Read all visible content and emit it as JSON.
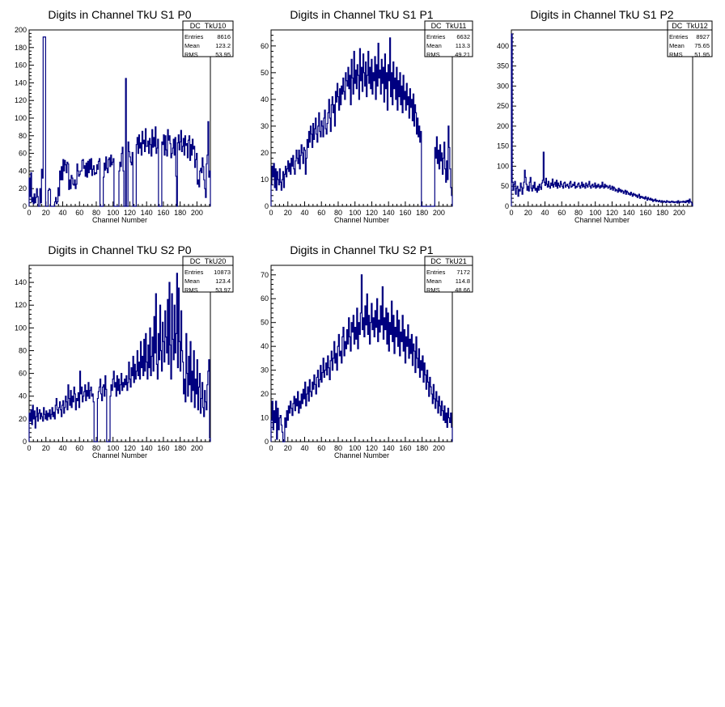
{
  "chart_data": [
    {
      "type": "histogram",
      "title": "Digits in Channel TkU S1 P0",
      "xlabel": "Channel Number",
      "xlim": [
        0,
        216
      ],
      "ylim": [
        0,
        200
      ],
      "xticks": [
        0,
        20,
        40,
        60,
        80,
        100,
        120,
        140,
        160,
        180,
        200
      ],
      "yticks": [
        0,
        20,
        40,
        60,
        80,
        100,
        120,
        140,
        160,
        180,
        200
      ],
      "stats": {
        "name": "DC_TkU10",
        "rows": [
          [
            "Entries",
            "8616"
          ],
          [
            "Mean",
            "123.2"
          ],
          [
            "RMS",
            "53.95"
          ]
        ]
      },
      "values": [
        32,
        11,
        38,
        5,
        10,
        3,
        14,
        4,
        10,
        20,
        11,
        0,
        0,
        20,
        4,
        42,
        32,
        192,
        192,
        192,
        0,
        0,
        0,
        18,
        20,
        19,
        0,
        0,
        0,
        0,
        0,
        5,
        10,
        3,
        5,
        21,
        12,
        40,
        30,
        45,
        30,
        53,
        40,
        52,
        47,
        38,
        50,
        48,
        19,
        30,
        20,
        35,
        32,
        25,
        24,
        30,
        20,
        25,
        48,
        40,
        34,
        36,
        40,
        40,
        52,
        53,
        43,
        46,
        34,
        49,
        33,
        51,
        38,
        53,
        42,
        54,
        35,
        42,
        46,
        36,
        38,
        37,
        47,
        42,
        51,
        54,
        0,
        0,
        0,
        0,
        33,
        49,
        41,
        56,
        43,
        38,
        53,
        55,
        45,
        58,
        47,
        50,
        54,
        0,
        0,
        0,
        0,
        0,
        0,
        40,
        50,
        45,
        60,
        67,
        40,
        0,
        0,
        145,
        0,
        0,
        73,
        62,
        56,
        50,
        47,
        61,
        0,
        0,
        0,
        0,
        70,
        78,
        60,
        81,
        66,
        72,
        58,
        85,
        71,
        75,
        62,
        88,
        68,
        68,
        74,
        60,
        77,
        70,
        57,
        87,
        67,
        78,
        68,
        90,
        60,
        66,
        76,
        0,
        0,
        0,
        0,
        73,
        70,
        81,
        58,
        80,
        64,
        57,
        87,
        75,
        80,
        71,
        55,
        60,
        66,
        76,
        58,
        78,
        34,
        0,
        72,
        81,
        64,
        73,
        86,
        62,
        68,
        77,
        58,
        80,
        69,
        71,
        55,
        75,
        80,
        52,
        70,
        58,
        76,
        65,
        68,
        44,
        53,
        60,
        25,
        30,
        22,
        40,
        43,
        38,
        55,
        45,
        30,
        20,
        10,
        48,
        58,
        96,
        33,
        40
      ]
    },
    {
      "type": "histogram",
      "title": "Digits in Channel TkU S1 P1",
      "xlabel": "Channel Number",
      "xlim": [
        0,
        216
      ],
      "ylim": [
        0,
        66
      ],
      "xticks": [
        0,
        20,
        40,
        60,
        80,
        100,
        120,
        140,
        160,
        180,
        200
      ],
      "yticks": [
        0,
        10,
        20,
        30,
        40,
        50,
        60
      ],
      "stats": {
        "name": "DC_TkU11",
        "rows": [
          [
            "Entries",
            "6632"
          ],
          [
            "Mean",
            "113.3"
          ],
          [
            "RMS",
            "49.21"
          ]
        ]
      },
      "values": [
        8,
        15,
        11,
        16,
        7,
        14,
        6,
        13,
        10,
        8,
        14,
        9,
        6,
        10,
        13,
        7,
        12,
        15,
        11,
        14,
        17,
        13,
        16,
        12,
        18,
        15,
        19,
        14,
        12,
        17,
        21,
        18,
        16,
        21,
        14,
        19,
        23,
        20,
        16,
        22,
        21,
        12,
        18,
        25,
        22,
        28,
        24,
        30,
        27,
        22,
        31,
        25,
        29,
        33,
        27,
        24,
        30,
        35,
        28,
        26,
        32,
        30,
        26,
        33,
        36,
        29,
        27,
        31,
        35,
        40,
        33,
        28,
        38,
        41,
        35,
        38,
        30,
        43,
        39,
        46,
        41,
        36,
        44,
        38,
        45,
        42,
        48,
        43,
        40,
        50,
        47,
        45,
        52,
        44,
        49,
        38,
        55,
        48,
        42,
        58,
        46,
        51,
        44,
        53,
        49,
        40,
        59,
        47,
        52,
        43,
        57,
        50,
        45,
        54,
        41,
        49,
        58,
        46,
        52,
        44,
        55,
        42,
        50,
        47,
        56,
        40,
        53,
        45,
        61,
        48,
        51,
        42,
        55,
        46,
        52,
        39,
        57,
        44,
        50,
        36,
        53,
        47,
        63,
        41,
        50,
        38,
        54,
        44,
        48,
        40,
        52,
        36,
        47,
        41,
        50,
        38,
        45,
        35,
        49,
        40,
        43,
        36,
        46,
        38,
        41,
        33,
        44,
        37,
        40,
        32,
        42,
        30,
        38,
        35,
        27,
        33,
        26,
        30,
        24,
        28,
        0,
        0,
        0,
        0,
        0,
        0,
        0,
        0,
        0,
        0,
        0,
        0,
        0,
        0,
        0,
        0,
        22,
        18,
        26,
        16,
        21,
        14,
        23,
        17,
        20,
        12,
        18,
        24,
        14,
        9,
        17,
        10,
        30,
        22,
        14,
        7,
        4
      ]
    },
    {
      "type": "histogram",
      "title": "Digits in Channel TkU S1 P2",
      "xlabel": "Channel Number",
      "xlim": [
        0,
        216
      ],
      "ylim": [
        0,
        440
      ],
      "xticks": [
        0,
        20,
        40,
        60,
        80,
        100,
        120,
        140,
        160,
        180,
        200
      ],
      "yticks": [
        0,
        50,
        100,
        150,
        200,
        250,
        300,
        350,
        400
      ],
      "stats": {
        "name": "DC_TkU12",
        "rows": [
          [
            "Entries",
            "8927"
          ],
          [
            "Mean",
            "75.65"
          ],
          [
            "RMS",
            "51.95"
          ]
        ]
      },
      "values": [
        430,
        60,
        40,
        55,
        62,
        30,
        45,
        50,
        25,
        42,
        38,
        58,
        48,
        30,
        45,
        60,
        90,
        72,
        55,
        40,
        50,
        38,
        60,
        72,
        45,
        38,
        52,
        45,
        60,
        40,
        45,
        35,
        50,
        40,
        55,
        48,
        42,
        58,
        65,
        135,
        60,
        52,
        70,
        55,
        48,
        62,
        50,
        45,
        58,
        52,
        68,
        48,
        55,
        60,
        50,
        65,
        45,
        58,
        52,
        48,
        62,
        55,
        50,
        45,
        58,
        60,
        48,
        52,
        55,
        50,
        45,
        58,
        62,
        48,
        50,
        55,
        52,
        60,
        45,
        50,
        48,
        55,
        58,
        50,
        45,
        52,
        60,
        48,
        55,
        50,
        45,
        58,
        52,
        48,
        55,
        62,
        50,
        45,
        52,
        55,
        48,
        50,
        58,
        45,
        52,
        48,
        55,
        50,
        45,
        52,
        48,
        60,
        50,
        45,
        55,
        48,
        52,
        50,
        45,
        48,
        52,
        42,
        45,
        50,
        40,
        48,
        45,
        38,
        42,
        40,
        35,
        45,
        38,
        42,
        35,
        40,
        38,
        32,
        36,
        40,
        30,
        38,
        35,
        30,
        32,
        28,
        35,
        30,
        25,
        32,
        28,
        30,
        25,
        28,
        22,
        26,
        30,
        20,
        25,
        22,
        24,
        20,
        22,
        18,
        24,
        20,
        15,
        22,
        18,
        16,
        20,
        15,
        18,
        12,
        16,
        14,
        18,
        12,
        15,
        13,
        11,
        15,
        12,
        10,
        14,
        12,
        10,
        13,
        11,
        9,
        14,
        12,
        10,
        12,
        9,
        11,
        13,
        10,
        12,
        9,
        11,
        10,
        12,
        8,
        14,
        10,
        9,
        12,
        11,
        10,
        13,
        10,
        12,
        9,
        14,
        11,
        15,
        8,
        18,
        12,
        10,
        6
      ]
    },
    {
      "type": "histogram",
      "title": "Digits in Channel TkU S2 P0",
      "xlabel": "Channel Number",
      "xlim": [
        0,
        216
      ],
      "ylim": [
        0,
        155
      ],
      "xticks": [
        0,
        20,
        40,
        60,
        80,
        100,
        120,
        140,
        160,
        180,
        200
      ],
      "yticks": [
        0,
        20,
        40,
        60,
        80,
        100,
        120,
        140
      ],
      "stats": {
        "name": "DC_TkU20",
        "rows": [
          [
            "Entries",
            "10873"
          ],
          [
            "Mean",
            "123.4"
          ],
          [
            "RMS",
            "53.97"
          ]
        ]
      },
      "values": [
        25,
        18,
        28,
        15,
        32,
        20,
        27,
        12,
        22,
        30,
        18,
        25,
        28,
        20,
        25,
        22,
        18,
        30,
        24,
        20,
        27,
        19,
        25,
        22,
        28,
        20,
        24,
        30,
        22,
        26,
        20,
        32,
        38,
        28,
        25,
        30,
        35,
        28,
        22,
        32,
        36,
        25,
        30,
        40,
        35,
        28,
        50,
        38,
        32,
        45,
        30,
        40,
        35,
        48,
        42,
        28,
        38,
        36,
        43,
        30,
        62,
        42,
        48,
        35,
        40,
        44,
        50,
        36,
        45,
        40,
        52,
        38,
        45,
        48,
        40,
        42,
        35,
        0,
        0,
        0,
        0,
        38,
        44,
        48,
        55,
        42,
        36,
        48,
        50,
        40,
        58,
        46,
        0,
        0,
        0,
        0,
        40,
        50,
        45,
        55,
        62,
        48,
        52,
        40,
        58,
        45,
        55,
        42,
        50,
        60,
        45,
        52,
        48,
        55,
        50,
        58,
        45,
        52,
        70,
        55,
        48,
        65,
        58,
        75,
        52,
        68,
        55,
        62,
        80,
        58,
        70,
        55,
        88,
        65,
        75,
        58,
        90,
        62,
        95,
        70,
        55,
        85,
        65,
        100,
        58,
        75,
        92,
        62,
        110,
        78,
        130,
        68,
        55,
        95,
        72,
        120,
        80,
        62,
        105,
        88,
        70,
        115,
        92,
        78,
        125,
        68,
        140,
        85,
        55,
        130,
        90,
        72,
        120,
        78,
        95,
        148,
        65,
        135,
        88,
        62,
        115,
        80,
        70,
        42,
        55,
        35,
        95,
        60,
        40,
        75,
        50,
        88,
        35,
        62,
        45,
        80,
        30,
        55,
        42,
        72,
        28,
        48,
        60,
        25,
        38,
        52,
        30,
        22,
        45,
        35,
        28,
        50,
        62,
        72,
        3
      ]
    },
    {
      "type": "histogram",
      "title": "Digits in Channel TkU S2 P1",
      "xlabel": "Channel Number",
      "xlim": [
        0,
        216
      ],
      "ylim": [
        0,
        74
      ],
      "xticks": [
        0,
        20,
        40,
        60,
        80,
        100,
        120,
        140,
        160,
        180,
        200
      ],
      "yticks": [
        0,
        10,
        20,
        30,
        40,
        50,
        60,
        70
      ],
      "stats": {
        "name": "DC_TkU21",
        "rows": [
          [
            "Entries",
            "7172"
          ],
          [
            "Mean",
            "114.8"
          ],
          [
            "RMS",
            "48.66"
          ]
        ]
      },
      "values": [
        9,
        17,
        5,
        13,
        8,
        17,
        1,
        14,
        5,
        10,
        11,
        7,
        4,
        0,
        0,
        10,
        6,
        13,
        9,
        15,
        12,
        17,
        14,
        11,
        16,
        19,
        13,
        18,
        15,
        21,
        12,
        17,
        14,
        20,
        16,
        22,
        18,
        25,
        15,
        20,
        23,
        17,
        26,
        21,
        19,
        25,
        22,
        28,
        24,
        20,
        27,
        30,
        23,
        26,
        32,
        25,
        29,
        35,
        27,
        30,
        33,
        28,
        36,
        31,
        26,
        34,
        38,
        30,
        35,
        42,
        33,
        37,
        30,
        40,
        45,
        36,
        38,
        33,
        44,
        48,
        36,
        42,
        39,
        47,
        41,
        52,
        44,
        38,
        50,
        46,
        53,
        41,
        48,
        43,
        56,
        39,
        50,
        45,
        54,
        70,
        47,
        52,
        44,
        57,
        49,
        62,
        45,
        53,
        41,
        50,
        58,
        47,
        52,
        44,
        55,
        48,
        60,
        42,
        51,
        46,
        57,
        49,
        65,
        43,
        52,
        47,
        56,
        41,
        54,
        38,
        50,
        45,
        59,
        42,
        53,
        37,
        48,
        44,
        55,
        40,
        51,
        36,
        46,
        42,
        53,
        38,
        47,
        33,
        44,
        40,
        49,
        35,
        43,
        37,
        45,
        32,
        41,
        38,
        29,
        44,
        35,
        31,
        39,
        27,
        34,
        30,
        36,
        25,
        33,
        28,
        22,
        30,
        25,
        19,
        27,
        23,
        20,
        16,
        24,
        18,
        14,
        21,
        17,
        12,
        19,
        15,
        11,
        17,
        13,
        9,
        15,
        8,
        12,
        6,
        14,
        10,
        8,
        12,
        6
      ]
    }
  ]
}
